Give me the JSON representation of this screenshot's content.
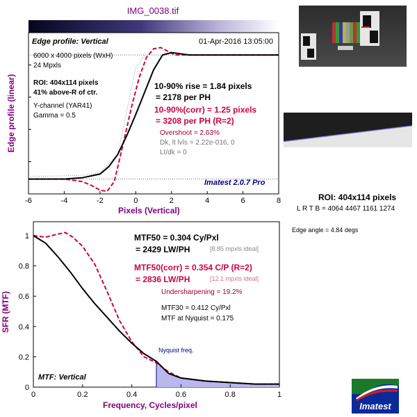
{
  "title": "IMG_0038.tif",
  "edge_panel": {
    "heading": "Edge profile: Vertical",
    "timestamp": "01-Apr-2016 13:05:00",
    "info_lines": [
      "6000 x 4000 pixels (WxH)",
      "24 Mpxls"
    ],
    "roi_lines": [
      "ROI: 404x114 pixels",
      "41% above-R of ctr."
    ],
    "channel_lines": [
      "Y-channel  (YAR41)",
      "Gamma = 0.5"
    ],
    "rise_lines": [
      "10-90% rise = 1.84 pixels",
      "= 2178 per PH"
    ],
    "corr_lines": [
      "10-90%(corr) = 1.25 pixels",
      "= 3208 per PH   (R=2)"
    ],
    "extra_lines": [
      "Overshoot = 2.63%",
      "Dk, lt lvls = 2.22e-016, 0",
      "Lt/dk = 0"
    ],
    "version": "Imatest 2.0.7 Pro"
  },
  "mtf_panel": {
    "heading": "MTF: Vertical",
    "mtf50_lines": [
      "MTF50 = 0.304 Cy/Pxl",
      "= 2429 LW/PH"
    ],
    "mtf50_ideal": "[8.85 mpxls ideal]",
    "corr_lines": [
      "MTF50(corr) = 0.354 C/P  (R=2)",
      "= 2836 LW/PH"
    ],
    "corr_ideal": "[12.1 mpxls ideal]",
    "undersharpening": "Undersharpening = 19.2%",
    "mtf30": "MTF30 = 0.412 Cy/Pxl",
    "mtf_nyquist": "MTF at Nyquist = 0.175",
    "nyquist_label": "Nyquist freq."
  },
  "right_panel": {
    "roi_title": "ROI: 404x114 pixels",
    "roi_coords": "L R  T B = 4064 4467  1161 1274",
    "edge_angle": "Edge angle = 4.84 degs"
  },
  "logo_text": "Imatest",
  "colors": {
    "title": "#800080",
    "corr": "#cc0044",
    "blue_text": "#000080",
    "nyquist_fill": "#b8b8ee",
    "axis_label": "#800080"
  },
  "chart_data": [
    {
      "type": "line",
      "xlabel": "Pixels (Vertical)",
      "ylabel": "Edge profile (linear)",
      "xlim": [
        -6,
        8
      ],
      "xticks": [
        -6,
        -4,
        -2,
        0,
        2,
        4,
        6,
        8
      ],
      "ylim": [
        -0.12,
        1.18
      ],
      "series": [
        {
          "style": "black-solid",
          "x": [
            -6,
            -4,
            -3,
            -2,
            -1.5,
            -1,
            -0.5,
            0,
            0.5,
            1,
            1.5,
            2,
            3,
            4,
            6,
            8
          ],
          "y": [
            0,
            0,
            0.01,
            0.04,
            0.1,
            0.2,
            0.35,
            0.52,
            0.7,
            0.88,
            1.0,
            1.02,
            1.0,
            1.0,
            1.0,
            1.0
          ]
        },
        {
          "style": "red-dashed",
          "x": [
            -6,
            -4,
            -3,
            -2.5,
            -2,
            -1.6,
            -1.2,
            -1,
            -0.6,
            -0.2,
            0.2,
            0.6,
            1,
            1.4,
            1.8,
            2.2,
            3,
            4,
            6,
            8
          ],
          "y": [
            0,
            0,
            -0.02,
            -0.05,
            -0.09,
            -0.1,
            -0.02,
            0.1,
            0.35,
            0.6,
            0.82,
            0.98,
            1.05,
            1.06,
            1.03,
            1.0,
            1.0,
            1.0,
            1.0,
            1.0
          ]
        },
        {
          "style": "dotted",
          "x": [
            -6,
            -3,
            -2,
            -1,
            -0.5,
            0,
            0.5,
            1,
            2,
            3,
            8
          ],
          "y": [
            0.02,
            0.03,
            0.05,
            0.2,
            0.55,
            0.9,
            1.0,
            1.0,
            1.0,
            1.0,
            1.0
          ]
        }
      ]
    },
    {
      "type": "line",
      "xlabel": "Frequency, Cycles/pixel",
      "ylabel": "SFR (MTF)",
      "xlim": [
        0,
        1
      ],
      "xticks": [
        0,
        0.2,
        0.4,
        0.6,
        0.8,
        1
      ],
      "ylim": [
        0,
        1
      ],
      "yticks": [
        0,
        0.2,
        0.4,
        0.6,
        0.8,
        1
      ],
      "series": [
        {
          "style": "black-solid",
          "x": [
            0,
            0.05,
            0.1,
            0.15,
            0.2,
            0.25,
            0.3,
            0.35,
            0.4,
            0.45,
            0.5,
            0.55,
            0.6,
            0.7,
            0.8,
            0.9,
            1.0
          ],
          "y": [
            1.0,
            0.95,
            0.86,
            0.76,
            0.65,
            0.55,
            0.46,
            0.37,
            0.29,
            0.22,
            0.17,
            0.09,
            0.06,
            0.04,
            0.03,
            0.02,
            0.02
          ]
        },
        {
          "style": "red-dashed",
          "x": [
            0,
            0.05,
            0.1,
            0.13,
            0.16,
            0.2,
            0.25,
            0.3,
            0.35,
            0.4,
            0.45,
            0.5,
            0.55,
            0.6,
            0.7,
            0.8,
            0.9,
            1.0
          ],
          "y": [
            1.0,
            0.99,
            1.01,
            1.02,
            0.99,
            0.93,
            0.81,
            0.63,
            0.44,
            0.3,
            0.2,
            0.16,
            0.1,
            0.06,
            0.04,
            0.03,
            0.02,
            0.02
          ]
        }
      ],
      "nyquist": 0.5
    }
  ]
}
